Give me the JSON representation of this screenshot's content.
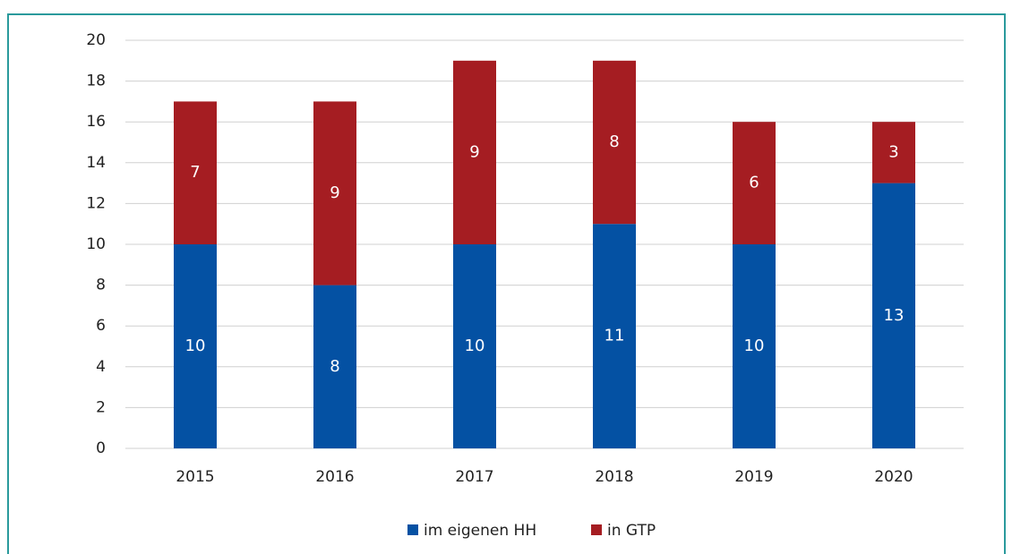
{
  "chart_data": {
    "type": "stacked_bar",
    "categories": [
      "2015",
      "2016",
      "2017",
      "2018",
      "2019",
      "2020"
    ],
    "series": [
      {
        "name": "im eigenen HH",
        "color": "#0451a3",
        "values": [
          10,
          8,
          10,
          11,
          10,
          13
        ]
      },
      {
        "name": "in GTP",
        "color": "#a51d22",
        "values": [
          7,
          9,
          9,
          8,
          6,
          3
        ]
      }
    ],
    "ylim": [
      0,
      20
    ],
    "yticks": [
      0,
      2,
      4,
      6,
      8,
      10,
      12,
      14,
      16,
      18,
      20
    ],
    "grid": true,
    "legend": "bottom"
  }
}
